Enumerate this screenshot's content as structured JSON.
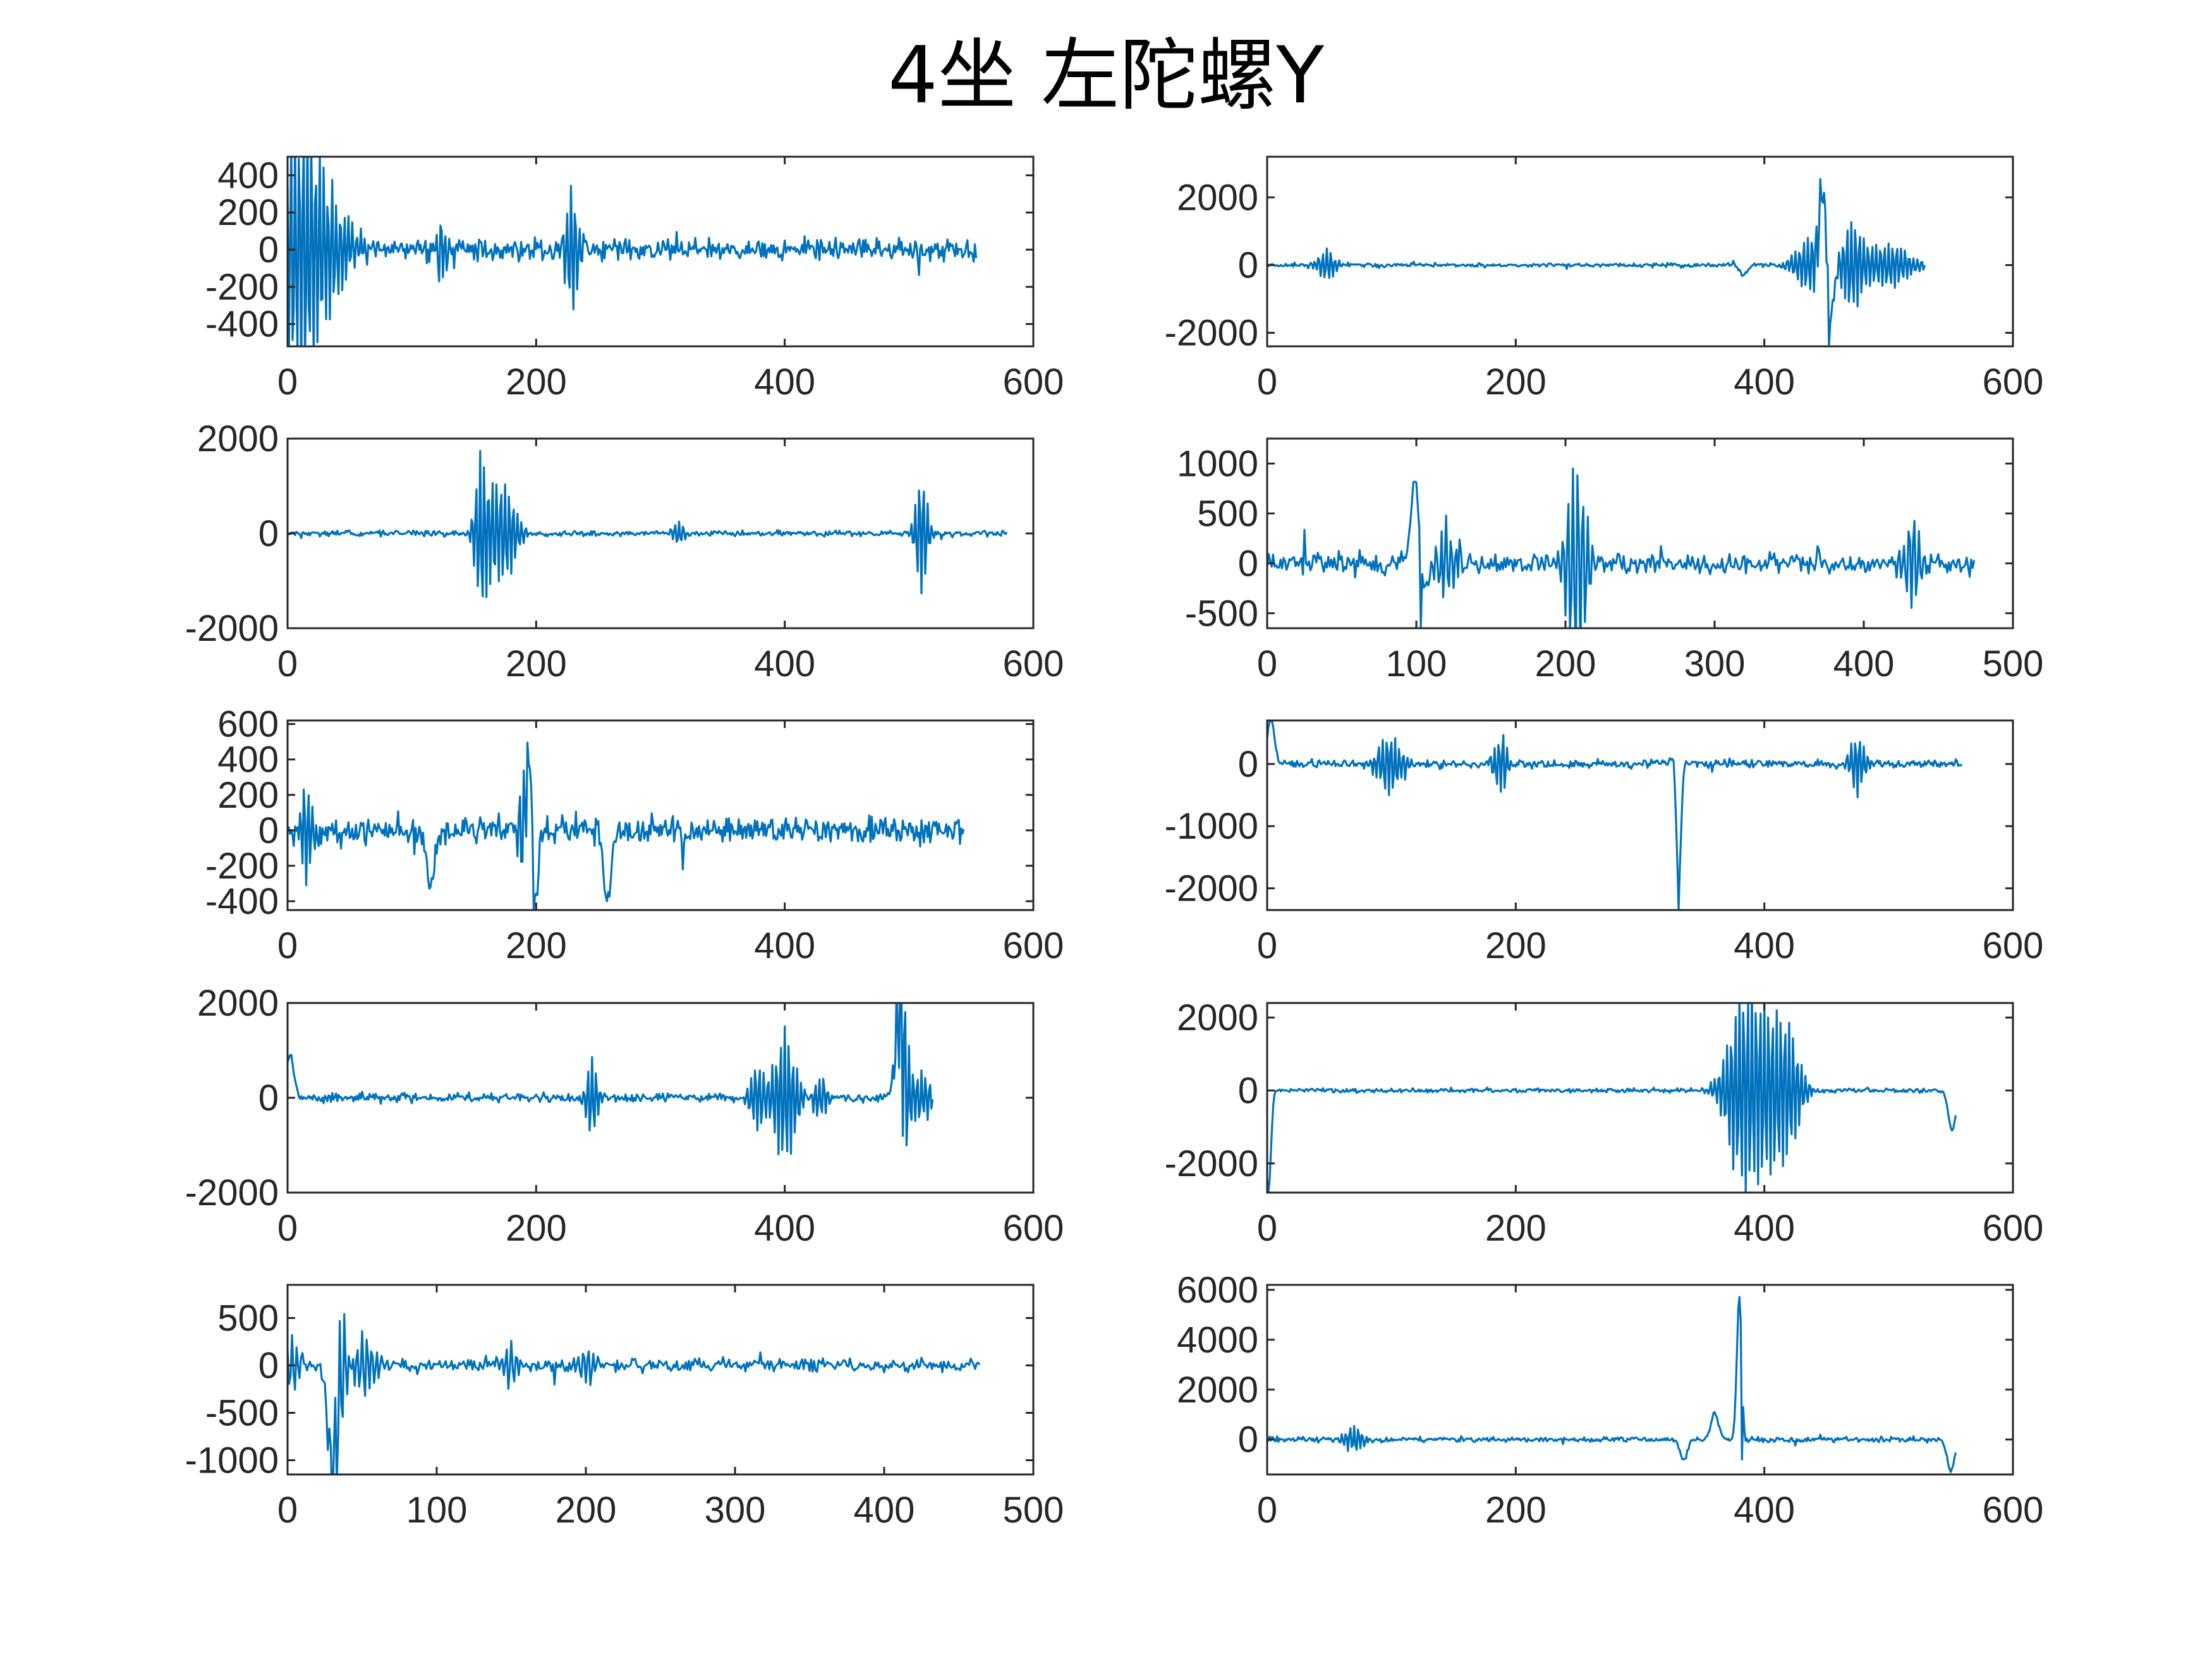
{
  "figure": {
    "title": "4坐  左陀螺Y",
    "line_color": "#0072BD",
    "axis_color": "#262626"
  },
  "chart_data": [
    {
      "type": "line",
      "row": 1,
      "col": 1,
      "xlim": [
        0,
        600
      ],
      "ylim": [
        -520,
        500
      ],
      "xticks": [
        0,
        200,
        400,
        600
      ],
      "yticks": [
        -400,
        -200,
        0,
        200,
        400
      ],
      "n_points": 555,
      "noise": 40,
      "events": [
        [
          3,
          450,
          25
        ],
        [
          14,
          -380,
          20
        ],
        [
          125,
          -160,
          4
        ],
        [
          228,
          200,
          4
        ],
        [
          230,
          -180,
          4
        ]
      ]
    },
    {
      "type": "line",
      "row": 1,
      "col": 2,
      "xlim": [
        0,
        600
      ],
      "ylim": [
        -2400,
        3200
      ],
      "xticks": [
        0,
        200,
        400,
        600
      ],
      "yticks": [
        -2000,
        0,
        2000
      ],
      "n_points": 530,
      "noise": 45,
      "events": [
        [
          48,
          450,
          6
        ],
        [
          383,
          -300,
          3
        ],
        [
          440,
          -900,
          12
        ],
        [
          448,
          3100,
          3
        ],
        [
          452,
          -2300,
          3
        ],
        [
          470,
          1300,
          8
        ],
        [
          500,
          650,
          15
        ]
      ]
    },
    {
      "type": "line",
      "row": 2,
      "col": 1,
      "xlim": [
        0,
        600
      ],
      "ylim": [
        -2000,
        2000
      ],
      "xticks": [
        0,
        200,
        400,
        600
      ],
      "yticks": [
        -2000,
        0,
        2000
      ],
      "n_points": 580,
      "noise": 40,
      "events": [
        [
          155,
          1400,
          4
        ],
        [
          163,
          -700,
          6
        ],
        [
          175,
          950,
          8
        ],
        [
          315,
          250,
          4
        ],
        [
          510,
          -1300,
          4
        ]
      ]
    },
    {
      "type": "line",
      "row": 2,
      "col": 2,
      "xlim": [
        0,
        500
      ],
      "ylim": [
        -650,
        1250
      ],
      "xticks": [
        0,
        100,
        200,
        300,
        400,
        500
      ],
      "yticks": [
        -500,
        0,
        500,
        1000
      ],
      "n_points": 475,
      "noise": 70,
      "events": [
        [
          100,
          1200,
          3
        ],
        [
          103,
          -640,
          3
        ],
        [
          120,
          350,
          6
        ],
        [
          205,
          650,
          5
        ],
        [
          210,
          -550,
          5
        ],
        [
          432,
          -450,
          5
        ]
      ]
    },
    {
      "type": "line",
      "row": 3,
      "col": 1,
      "xlim": [
        0,
        600
      ],
      "ylim": [
        -450,
        620
      ],
      "xticks": [
        0,
        200,
        400,
        600
      ],
      "yticks": [
        -400,
        -200,
        0,
        200,
        400,
        600
      ],
      "n_points": 545,
      "noise": 55,
      "events": [
        [
          15,
          -300,
          4
        ],
        [
          115,
          -320,
          3
        ],
        [
          190,
          300,
          4
        ],
        [
          195,
          620,
          2
        ],
        [
          198,
          -450,
          3
        ],
        [
          257,
          -400,
          3
        ]
      ]
    },
    {
      "type": "line",
      "row": 3,
      "col": 2,
      "xlim": [
        0,
        600
      ],
      "ylim": [
        -2350,
        700
      ],
      "xticks": [
        0,
        200,
        400,
        600
      ],
      "yticks": [
        -2000,
        -1000,
        0
      ],
      "n_points": 560,
      "noise": 45,
      "events": [
        [
          3,
          700,
          3
        ],
        [
          98,
          -500,
          8
        ],
        [
          188,
          -450,
          5
        ],
        [
          330,
          500,
          3
        ],
        [
          331,
          -2350,
          2
        ],
        [
          475,
          -500,
          5
        ]
      ]
    },
    {
      "type": "line",
      "row": 4,
      "col": 1,
      "xlim": [
        0,
        600
      ],
      "ylim": [
        -2000,
        2000
      ],
      "xticks": [
        0,
        200,
        400,
        600
      ],
      "yticks": [
        -2000,
        0,
        2000
      ],
      "n_points": 520,
      "noise": 65,
      "events": [
        [
          2,
          900,
          3
        ],
        [
          245,
          850,
          4
        ],
        [
          378,
          -750,
          5
        ],
        [
          400,
          1400,
          8
        ],
        [
          428,
          450,
          5
        ],
        [
          492,
          1800,
          3
        ],
        [
          495,
          -1800,
          4
        ],
        [
          510,
          500,
          8
        ]
      ]
    },
    {
      "type": "line",
      "row": 4,
      "col": 2,
      "xlim": [
        0,
        600
      ],
      "ylim": [
        -2800,
        2400
      ],
      "xticks": [
        0,
        200,
        400,
        600
      ],
      "yticks": [
        -2000,
        0,
        2000
      ],
      "n_points": 555,
      "noise": 40,
      "events": [
        [
          1,
          -2800,
          2
        ],
        [
          380,
          1700,
          10
        ],
        [
          400,
          2200,
          15
        ],
        [
          420,
          1000,
          8
        ],
        [
          551,
          -1100,
          3
        ]
      ]
    },
    {
      "type": "line",
      "row": 5,
      "col": 1,
      "xlim": [
        0,
        500
      ],
      "ylim": [
        -1150,
        850
      ],
      "xticks": [
        0,
        100,
        200,
        300,
        400,
        500
      ],
      "yticks": [
        -1000,
        -500,
        0,
        500
      ],
      "n_points": 465,
      "noise": 50,
      "events": [
        [
          3,
          300,
          4
        ],
        [
          30,
          -1100,
          3
        ],
        [
          35,
          800,
          5
        ],
        [
          50,
          350,
          8
        ],
        [
          150,
          250,
          4
        ],
        [
          200,
          -250,
          4
        ]
      ]
    },
    {
      "type": "line",
      "row": 5,
      "col": 2,
      "xlim": [
        0,
        600
      ],
      "ylim": [
        -1400,
        6200
      ],
      "xticks": [
        0,
        200,
        400,
        600
      ],
      "yticks": [
        0,
        2000,
        4000,
        6000
      ],
      "n_points": 555,
      "noise": 70,
      "events": [
        [
          70,
          550,
          6
        ],
        [
          335,
          -800,
          3
        ],
        [
          360,
          1100,
          3
        ],
        [
          380,
          6200,
          2
        ],
        [
          382,
          -800,
          2
        ],
        [
          550,
          -1300,
          3
        ]
      ]
    }
  ]
}
